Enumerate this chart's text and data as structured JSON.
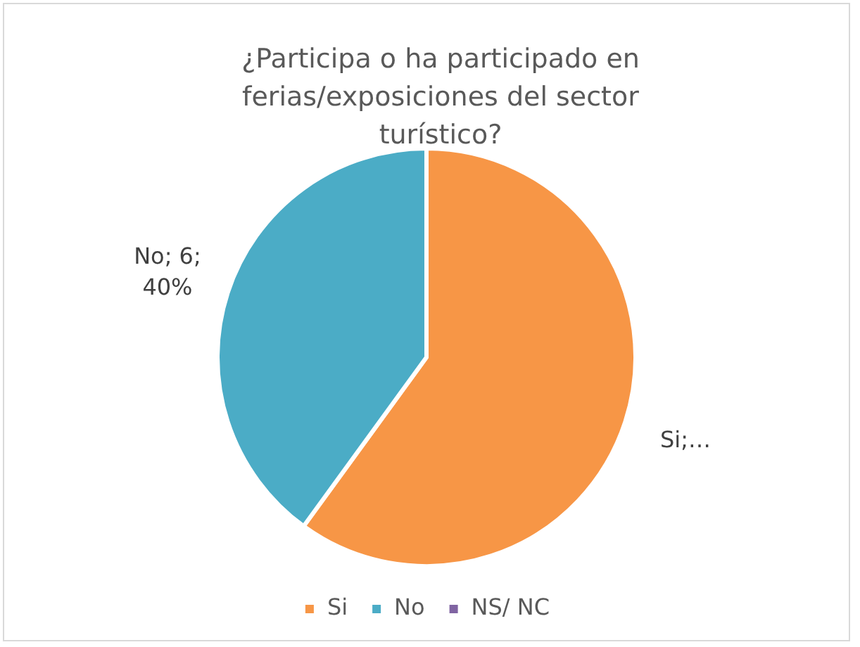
{
  "chart_data": {
    "type": "pie",
    "title": "¿Participa o ha participado en ferias/exposiciones del sector turístico?",
    "categories": [
      "Si",
      "No",
      "NS/ NC"
    ],
    "values": [
      9,
      6,
      0
    ],
    "colors": [
      "#f79646",
      "#4bacc6",
      "#8064a2"
    ],
    "value_labels": [
      "Si;…",
      "No; 6; 40%",
      null
    ],
    "legend": "bottom"
  }
}
